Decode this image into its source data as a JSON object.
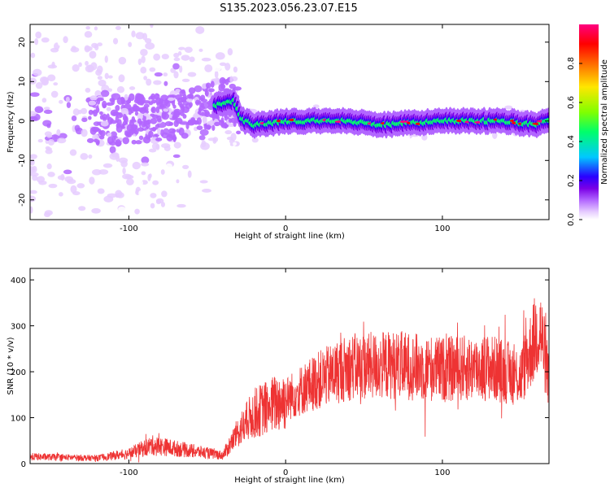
{
  "title": "S135.2023.056.23.07.E15",
  "chart_data": [
    {
      "type": "heatmap",
      "xlabel": "Height of straight line (km)",
      "ylabel": "Frequency (Hz)",
      "xlim": [
        -163,
        168
      ],
      "ylim": [
        -25,
        24.5
      ],
      "xticks": [
        -100,
        0,
        100
      ],
      "yticks": [
        -20,
        -10,
        0,
        10,
        20
      ],
      "colorbar": {
        "label": "Normalized spectral amplitude",
        "range": [
          0,
          1
        ],
        "ticks": [
          0.0,
          0.2,
          0.4,
          0.6,
          0.8
        ],
        "colors": [
          "#ffffff",
          "#e6ccff",
          "#b266ff",
          "#7a00e6",
          "#2a00ff",
          "#00c8ff",
          "#00ff6a",
          "#80ff00",
          "#ffe600",
          "#ff6a00",
          "#ff0000",
          "#ff0080"
        ]
      },
      "ridge_center_hz": [
        {
          "x": -160,
          "y": 0
        },
        {
          "x": -110,
          "y": 0
        },
        {
          "x": -70,
          "y": 1.5
        },
        {
          "x": -45,
          "y": 4
        },
        {
          "x": -33,
          "y": 5
        },
        {
          "x": -28,
          "y": 0.5
        },
        {
          "x": -20,
          "y": -1
        },
        {
          "x": 0,
          "y": 0
        },
        {
          "x": 40,
          "y": 0
        },
        {
          "x": 60,
          "y": -1
        },
        {
          "x": 100,
          "y": 0
        },
        {
          "x": 140,
          "y": 0
        },
        {
          "x": 160,
          "y": -1
        },
        {
          "x": 168,
          "y": 0.5
        }
      ]
    },
    {
      "type": "line",
      "xlabel": "Height of straight line (km)",
      "ylabel": "SNR (10 * v/v)",
      "xlim": [
        -163,
        168
      ],
      "ylim": [
        0,
        425
      ],
      "xticks": [
        -100,
        0,
        100
      ],
      "yticks": [
        0,
        100,
        200,
        300,
        400
      ],
      "series": [
        {
          "color": "#ee3333",
          "mean_trend": [
            {
              "x": -163,
              "y": 15
            },
            {
              "x": -120,
              "y": 12
            },
            {
              "x": -100,
              "y": 22
            },
            {
              "x": -85,
              "y": 40
            },
            {
              "x": -60,
              "y": 28
            },
            {
              "x": -40,
              "y": 18
            },
            {
              "x": -30,
              "y": 70
            },
            {
              "x": -20,
              "y": 110
            },
            {
              "x": 0,
              "y": 140
            },
            {
              "x": 20,
              "y": 180
            },
            {
              "x": 40,
              "y": 210
            },
            {
              "x": 70,
              "y": 215
            },
            {
              "x": 100,
              "y": 205
            },
            {
              "x": 130,
              "y": 210
            },
            {
              "x": 150,
              "y": 190
            },
            {
              "x": 162,
              "y": 300
            },
            {
              "x": 168,
              "y": 180
            }
          ]
        }
      ]
    }
  ]
}
